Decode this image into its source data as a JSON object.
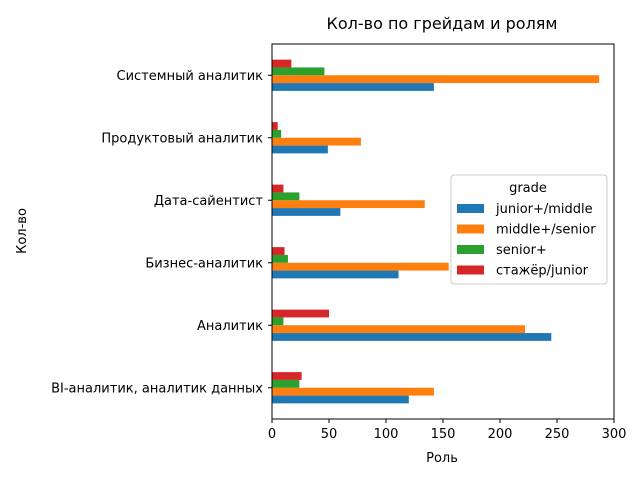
{
  "chart_data": {
    "type": "bar",
    "orientation": "horizontal",
    "title": "Кол-во по грейдам и ролям",
    "xlabel": "Роль",
    "ylabel": "Кол-во",
    "xlim": [
      0,
      300
    ],
    "xticks": [
      0,
      50,
      100,
      150,
      200,
      250,
      300
    ],
    "grid": false,
    "legend_title": "grade",
    "legend_placement": "center-right",
    "categories": [
      "BI-аналитик, аналитик данных",
      "Аналитик",
      "Бизнес-аналитик",
      "Дата-сайентист",
      "Продуктовый аналитик",
      "Системный аналитик"
    ],
    "series": [
      {
        "name": "junior+/middle",
        "color": "#1f77b4",
        "values": [
          120,
          245,
          111,
          60,
          49,
          142
        ]
      },
      {
        "name": "middle+/senior",
        "color": "#ff7f0e",
        "values": [
          142,
          222,
          155,
          134,
          78,
          287
        ]
      },
      {
        "name": "senior+",
        "color": "#2ca02c",
        "values": [
          24,
          10,
          14,
          24,
          8,
          46
        ]
      },
      {
        "name": "стажёр/junior",
        "color": "#d62728",
        "values": [
          26,
          50,
          11,
          10,
          5,
          17
        ]
      }
    ]
  }
}
